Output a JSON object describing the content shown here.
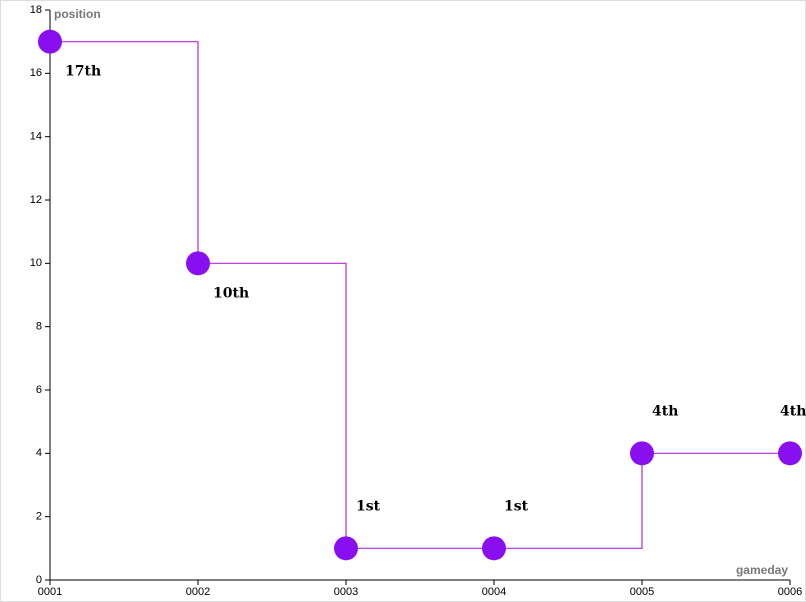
{
  "chart_data": {
    "type": "step",
    "y_label": "position",
    "x_label": "gameday",
    "categories": [
      "0001",
      "0002",
      "0003",
      "0004",
      "0005",
      "0006"
    ],
    "values": [
      17,
      10,
      1,
      1,
      4,
      4
    ],
    "value_labels": [
      "17th",
      "10th",
      "1st",
      "1st",
      "4th",
      "4th"
    ],
    "color": "#8a0ff0",
    "line_color": "#b02ae0",
    "ylim": [
      0,
      18
    ],
    "yticks": [
      0,
      2,
      4,
      6,
      8,
      10,
      12,
      14,
      16,
      18
    ]
  }
}
